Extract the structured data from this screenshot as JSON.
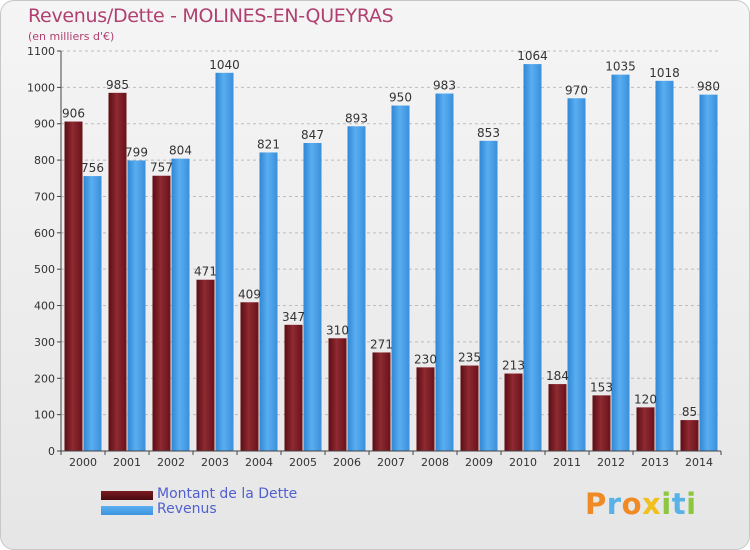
{
  "title": "Revenus/Dette - MOLINES-EN-QUEYRAS",
  "subtitle": "(en milliers d'€)",
  "colors": {
    "dette": "#7a1a22",
    "revenus": "#3d95e0",
    "title": "#b04070",
    "legend_text": "#5060d0"
  },
  "legend": {
    "dette_label": "Montant de la Dette",
    "revenus_label": "Revenus"
  },
  "logo": {
    "text": "Proxiti"
  },
  "chart_data": {
    "type": "bar",
    "title": "Revenus/Dette - MOLINES-EN-QUEYRAS",
    "subtitle": "(en milliers d'€)",
    "xlabel": "",
    "ylabel": "",
    "ylim": [
      0,
      1100
    ],
    "yticks": [
      0,
      100,
      200,
      300,
      400,
      500,
      600,
      700,
      800,
      900,
      1000,
      1100
    ],
    "grid": "horizontal dashed",
    "legend_position": "bottom-left",
    "categories": [
      "2000",
      "2001",
      "2002",
      "2003",
      "2004",
      "2005",
      "2006",
      "2007",
      "2008",
      "2009",
      "2010",
      "2011",
      "2012",
      "2013",
      "2014"
    ],
    "series": [
      {
        "name": "Montant de la Dette",
        "color": "#7a1a22",
        "values": [
          906,
          985,
          757,
          471,
          409,
          347,
          310,
          271,
          230,
          235,
          213,
          184,
          153,
          120,
          85
        ]
      },
      {
        "name": "Revenus",
        "color": "#3d95e0",
        "values": [
          756,
          799,
          804,
          1040,
          821,
          847,
          893,
          950,
          983,
          853,
          1064,
          970,
          1035,
          1018,
          980
        ]
      }
    ]
  }
}
